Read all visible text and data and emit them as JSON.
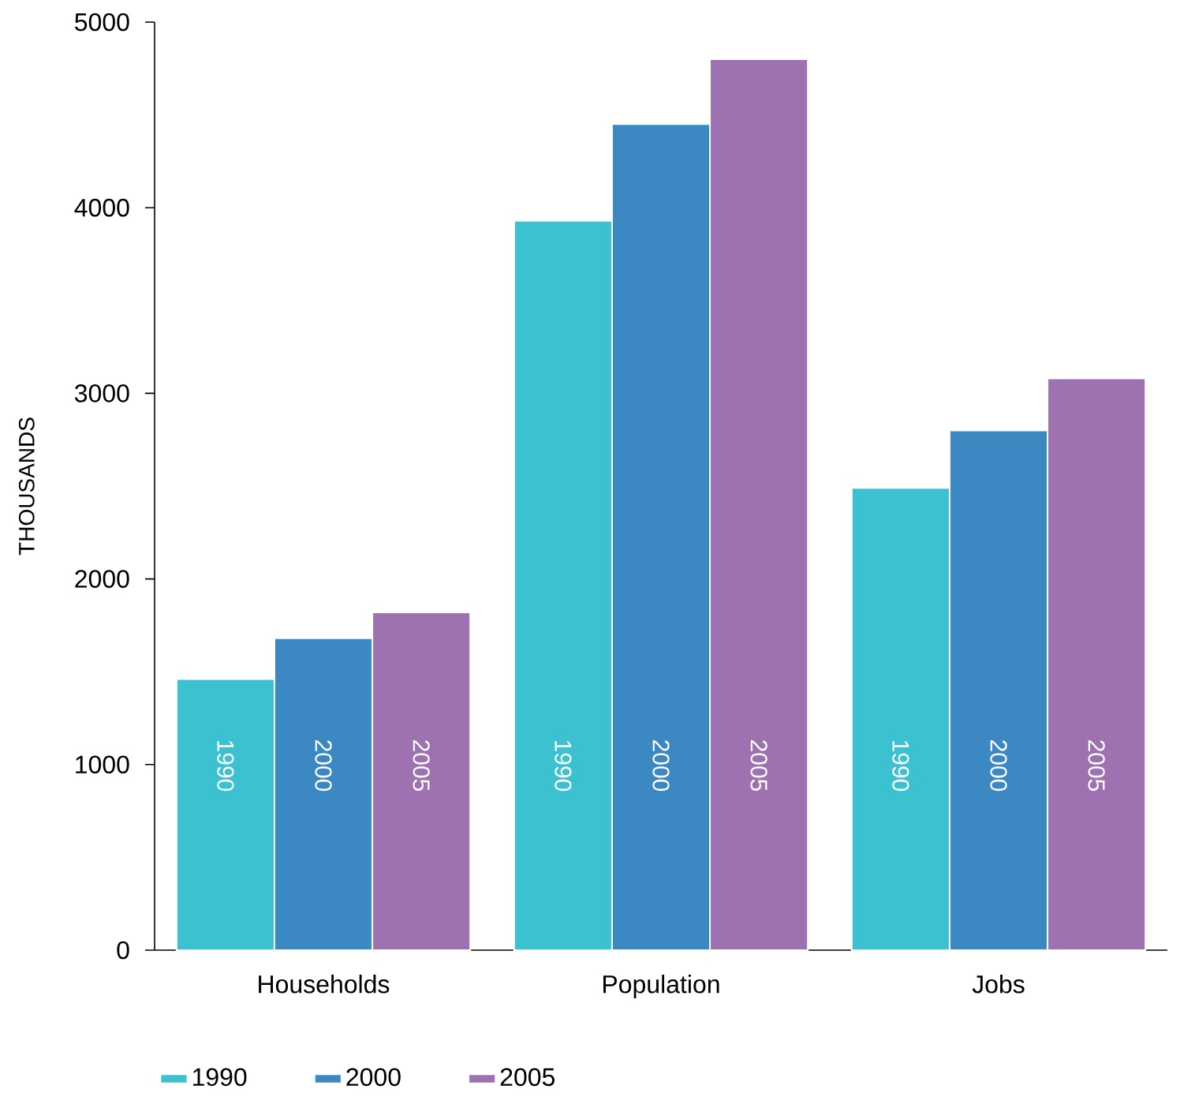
{
  "chart_data": {
    "type": "bar",
    "ylabel": "THOUSANDS",
    "categories": [
      "Households",
      "Population",
      "Jobs"
    ],
    "series": [
      {
        "name": "1990",
        "color": "#3bc1cf",
        "values": [
          1460,
          3930,
          2490
        ]
      },
      {
        "name": "2000",
        "color": "#3b88c3",
        "values": [
          1680,
          4450,
          2800
        ]
      },
      {
        "name": "2005",
        "color": "#9e72b0",
        "values": [
          1820,
          4800,
          3080
        ]
      }
    ],
    "ylim": [
      0,
      5000
    ],
    "yticks": [
      0,
      1000,
      2000,
      3000,
      4000,
      5000
    ],
    "grid": false,
    "legend": "bottom"
  }
}
